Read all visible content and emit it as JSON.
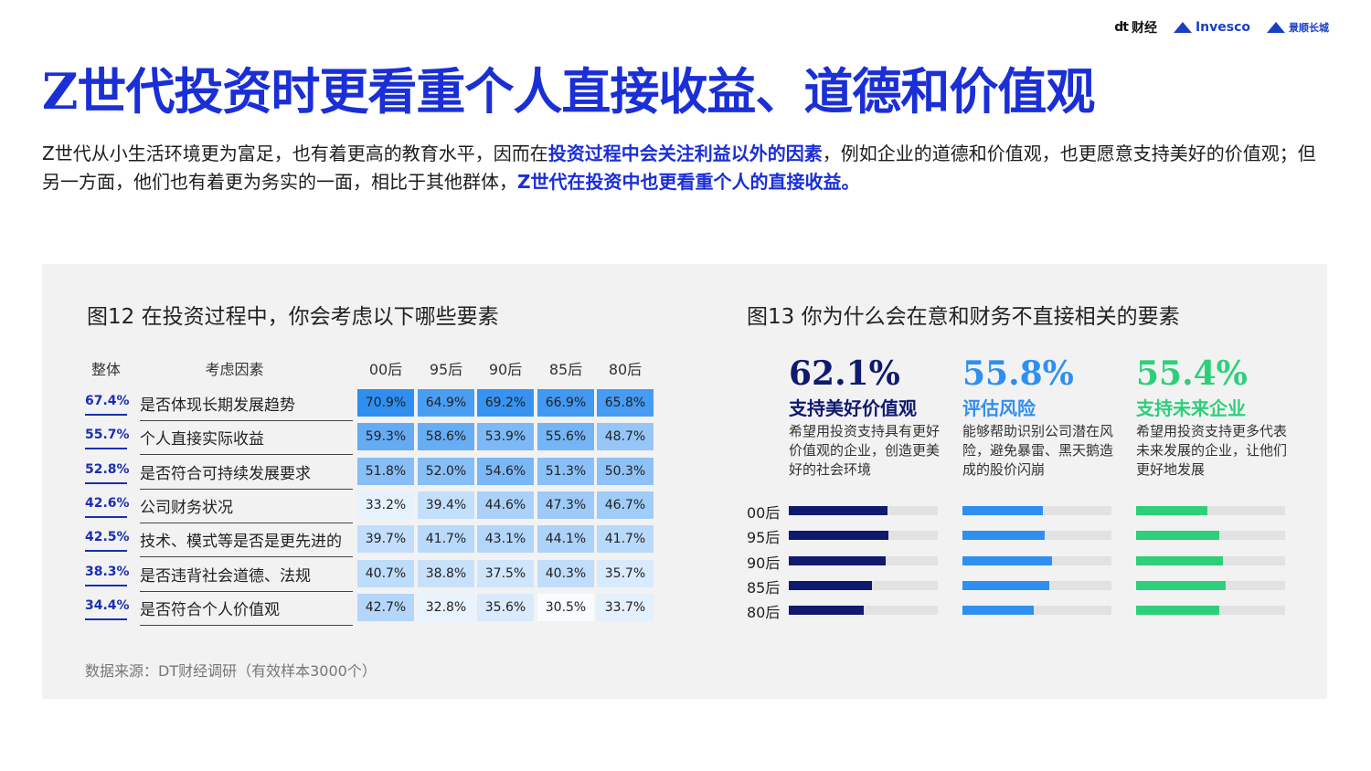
{
  "logos": {
    "dt_mark": "dt",
    "dt_text": "财经",
    "invesco": "Invesco",
    "greatwall": "景顺长城"
  },
  "title": "Z世代投资时更看重个人直接收益、道德和价值观",
  "intro": {
    "p1": "Z世代从小生活环境更为富足，也有着更高的教育水平，因而在",
    "h1": "投资过程中会关注利益以外的因素",
    "p2": "，例如企业的道德和价值观，也更愿意支持美好的价值观；但另一方面，他们也有着更为务实的一面，相比于其他群体，",
    "h2": "Z世代在投资中也更看重个人的直接收益。"
  },
  "source": "数据来源：DT财经调研（有效样本3000个）",
  "chart_data": [
    {
      "type": "table",
      "title": "图12  在投资过程中，你会考虑以下哪些要素",
      "columns": [
        "整体",
        "考虑因素",
        "00后",
        "95后",
        "90后",
        "85后",
        "80后"
      ],
      "rows": [
        {
          "total": "67.4%",
          "factor": "是否体现长期发展趋势",
          "values": [
            70.9,
            64.9,
            69.2,
            66.9,
            65.8
          ]
        },
        {
          "total": "55.7%",
          "factor": "个人直接实际收益",
          "values": [
            59.3,
            58.6,
            53.9,
            55.6,
            48.7
          ]
        },
        {
          "total": "52.8%",
          "factor": "是否符合可持续发展要求",
          "values": [
            51.8,
            52.0,
            54.6,
            51.3,
            50.3
          ]
        },
        {
          "total": "42.6%",
          "factor": "公司财务状况",
          "values": [
            33.2,
            39.4,
            44.6,
            47.3,
            46.7
          ]
        },
        {
          "total": "42.5%",
          "factor": "技术、模式等是否是更先进的",
          "values": [
            39.7,
            41.7,
            43.1,
            44.1,
            41.7
          ]
        },
        {
          "total": "38.3%",
          "factor": "是否违背社会道德、法规",
          "values": [
            40.7,
            38.8,
            37.5,
            40.3,
            35.7
          ]
        },
        {
          "total": "34.4%",
          "factor": "是否符合个人价值观",
          "values": [
            42.7,
            32.8,
            35.6,
            30.5,
            33.7
          ]
        }
      ],
      "heat_color_low": "#f8fbff",
      "heat_color_high": "#2f8ff0"
    },
    {
      "type": "bar",
      "orientation": "horizontal",
      "title": "图13  你为什么会在意和财务不直接相关的要素",
      "categories": [
        "00后",
        "95后",
        "90后",
        "85后",
        "80后"
      ],
      "xlim": [
        0,
        100
      ],
      "series": [
        {
          "headline": "62.1%",
          "name": "支持美好价值观",
          "description": "希望用投资支持具有更好价值观的企业，创造更美好的社会环境",
          "color": "#0f1a6e",
          "headline_color": "#0f1a6e",
          "values": [
            66,
            67,
            65,
            56,
            50
          ]
        },
        {
          "headline": "55.8%",
          "name": "评估风险",
          "description": "能够帮助识别公司潜在风险，避免暴雷、黑天鹅造成的股价闪崩",
          "color": "#2f8ff0",
          "headline_color": "#2f8ff0",
          "values": [
            54,
            55,
            60,
            58,
            48
          ]
        },
        {
          "headline": "55.4%",
          "name": "支持未来企业",
          "description": "希望用投资支持更多代表未来发展的企业，让他们更好地发展",
          "color": "#2ecf7a",
          "headline_color": "#2ecf7a",
          "values": [
            48,
            56,
            58,
            60,
            56
          ]
        }
      ]
    }
  ]
}
